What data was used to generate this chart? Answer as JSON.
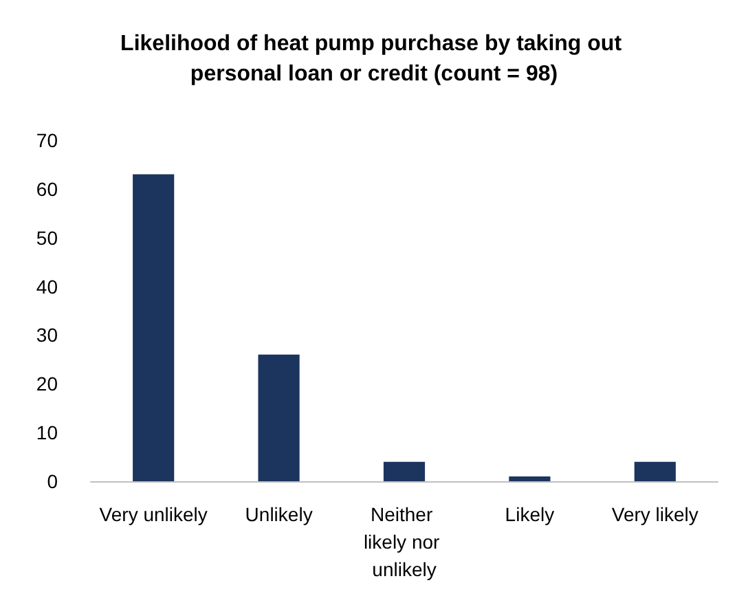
{
  "chart_data": {
    "type": "bar",
    "title": "Likelihood of heat pump purchase by taking out personal loan or credit (count = 98)",
    "categories": [
      "Very unlikely",
      "Unlikely",
      "Neither likely nor unlikely",
      "Likely",
      "Very likely"
    ],
    "values": [
      63,
      26,
      4,
      1,
      4
    ],
    "color": "#1c355e",
    "ylim": [
      0,
      70
    ],
    "yticks": [
      0,
      10,
      20,
      30,
      40,
      50,
      60,
      70
    ],
    "grid": false
  }
}
